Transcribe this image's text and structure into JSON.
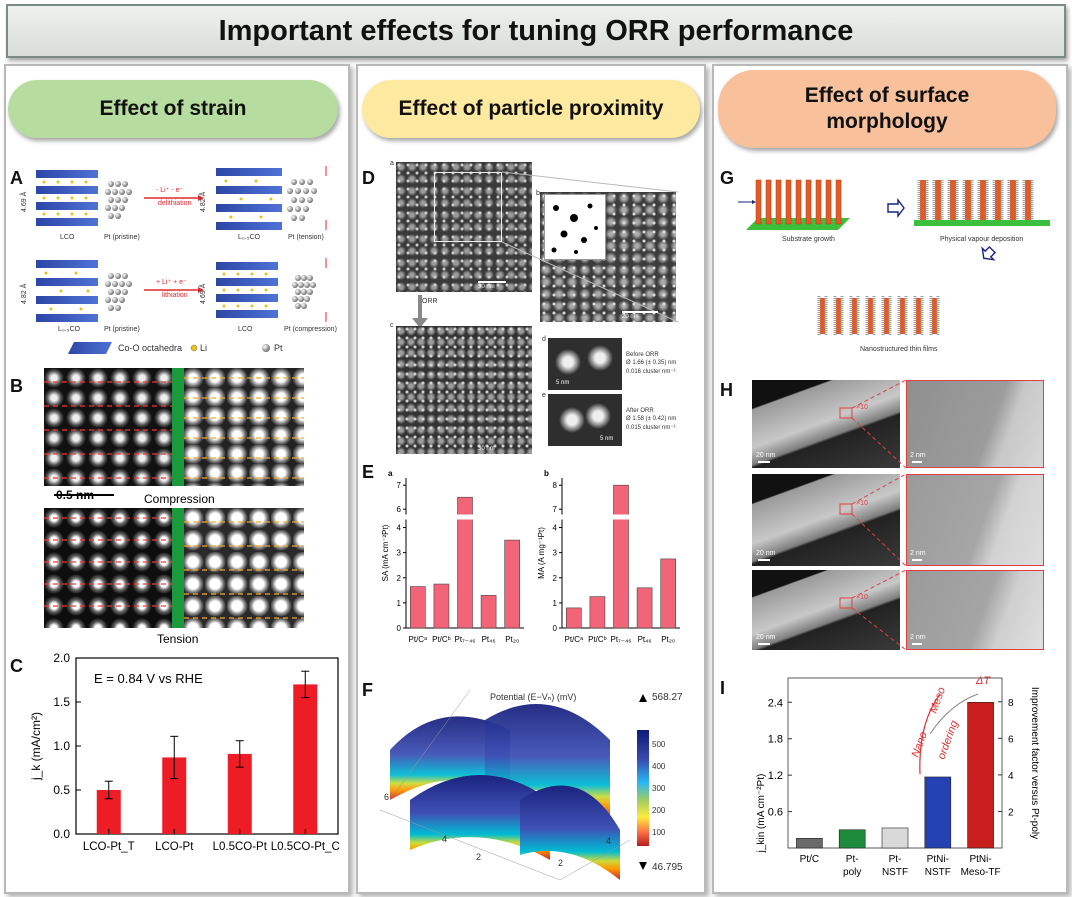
{
  "title": "Important effects for tuning ORR performance",
  "columns": [
    {
      "header": "Effect of strain"
    },
    {
      "header": "Effect of particle proximity"
    },
    {
      "header": "Effect of surface\nmorphology"
    }
  ],
  "panel_letters": [
    "A",
    "B",
    "C",
    "D",
    "E",
    "F",
    "G",
    "H",
    "I"
  ],
  "panel_a": {
    "rows": [
      {
        "left_lattice": "LCO",
        "left_pt": "Pt (pristine)",
        "arrow_top": "- Li⁺ - e⁻",
        "arrow_bottom": "delithiation",
        "right_lattice": "L₀.₅CO",
        "right_pt": "Pt (tension)",
        "dim_left": "4.69 Å",
        "dim_right": "4.82 Å"
      },
      {
        "left_lattice": "L₀.₅CO",
        "left_pt": "Pt (pristine)",
        "arrow_top": "+ Li⁺ + e⁻",
        "arrow_bottom": "lithiation",
        "right_lattice": "LCO",
        "right_pt": "Pt (compression)",
        "dim_left": "4.82 Å",
        "dim_right": "4.69 Å"
      }
    ],
    "legend": [
      "Co-O octahedra",
      "Li",
      "Pt"
    ]
  },
  "panel_b": {
    "scale": "0.5 nm",
    "top_caption": "Compression",
    "bottom_caption": "Tension"
  },
  "panel_c": {
    "annotation": "E = 0.84 V vs RHE",
    "chart_data": {
      "type": "bar",
      "categories": [
        "LCO-Pt_T",
        "LCO-Pt",
        "L0.5CO-Pt",
        "L0.5CO-Pt_C"
      ],
      "values": [
        0.5,
        0.87,
        0.91,
        1.7
      ],
      "errors": [
        0.1,
        0.24,
        0.15,
        0.15
      ],
      "ylabel": "j_k (mA/cm²)",
      "ylim": [
        0,
        2.0
      ],
      "yticks": [
        "0.0",
        "0.5",
        "1.0",
        "1.5",
        "2.0"
      ],
      "color": "#ee1c24"
    }
  },
  "panel_d": {
    "scales": [
      "30 nm",
      "20 nm",
      "30 nm",
      "5 nm",
      "5 nm"
    ],
    "arrow_label": "ORR",
    "sub": [
      "a",
      "b",
      "c",
      "d",
      "e"
    ],
    "before": [
      "Before ORR",
      "Ø 1.66 (± 0.35) nm",
      "0.016 cluster nm⁻²"
    ],
    "after": [
      "After ORR",
      "Ø 1.58 (± 0.42) nm",
      "0.015 cluster nm⁻²"
    ]
  },
  "panel_e": {
    "chart_data": [
      {
        "type": "bar",
        "sub": "a",
        "ylabel": "SA (mA cm⁻²Pt)",
        "categories": [
          "Pt/Cᵃ",
          "Pt/Cᵇ",
          "Pt₇₋₄₆",
          "Pt₄₆",
          "Pt₂₀"
        ],
        "values": [
          1.65,
          1.75,
          6.5,
          1.3,
          3.5
        ],
        "yticks": [
          "0",
          "1",
          "2",
          "3",
          "4",
          "6",
          "7"
        ],
        "color": "#f26478"
      },
      {
        "type": "bar",
        "sub": "b",
        "ylabel": "MA (A mg⁻¹Pt)",
        "categories": [
          "Pt/Cᵃ",
          "Pt/Cᵇ",
          "Pt₇₋₄₆",
          "Pt₄₆",
          "Pt₂₀"
        ],
        "values": [
          0.8,
          1.25,
          8.0,
          1.6,
          2.75
        ],
        "yticks": [
          "0",
          "1",
          "2",
          "3",
          "4",
          "7",
          "8"
        ],
        "color": "#f26478"
      }
    ]
  },
  "panel_f": {
    "title": "Potential (E−Vₙ) (mV)",
    "max": "568.27",
    "min": "46.795",
    "colorbar_ticks": [
      "500",
      "400",
      "300",
      "200",
      "100"
    ],
    "axis_ticks": [
      "6",
      "4",
      "2",
      "2",
      "4"
    ]
  },
  "panel_g": {
    "labels": [
      "Substrate growth",
      "Physical vapour deposition",
      "Nanostructured thin films"
    ]
  },
  "panel_h": {
    "scales": [
      "20 nm",
      "2 nm",
      "20 nm",
      "2 nm",
      "20 nm",
      "2 nm"
    ],
    "zoom": "×10"
  },
  "panel_i": {
    "annotations": [
      "Nano",
      "Meso",
      "ordering",
      "ΔT"
    ],
    "chart_data": {
      "type": "bar",
      "categories": [
        "Pt/C",
        "Pt-poly",
        "Pt-NSTF",
        "PtNi-NSTF",
        "PtNi-Meso-TF"
      ],
      "values": [
        0.16,
        0.3,
        0.33,
        1.17,
        2.4
      ],
      "colors": [
        "#6a6a6a",
        "#1d8a3c",
        "#d9d9d9",
        "#2542b4",
        "#c81e1e"
      ],
      "ylabel": "j_kin (mA cm⁻²Pt)",
      "ylabel_right": "Improvement factor versus Pt-poly",
      "yticks": [
        "0.6",
        "1.2",
        "1.8",
        "2.4"
      ],
      "yticks_right": [
        "2",
        "4",
        "6",
        "8"
      ],
      "ylim": [
        0,
        2.8
      ]
    }
  }
}
